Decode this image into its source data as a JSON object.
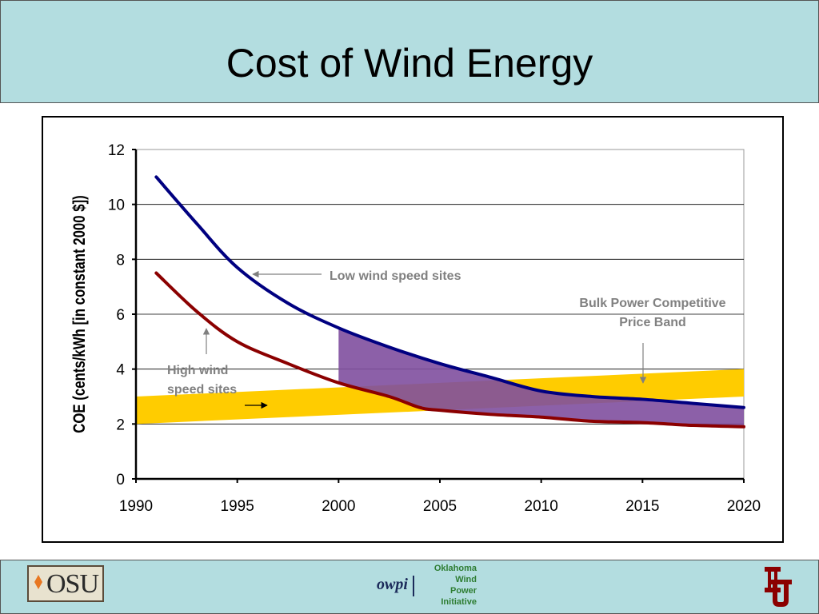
{
  "title": "Cost of Wind Energy",
  "footer": {
    "osu_text": "OSU",
    "owpi_mark": "owpi",
    "owpi_lines": [
      "Oklahoma",
      "Wind",
      "Power",
      "Initiative"
    ]
  },
  "colors": {
    "background_band": "#b3dde0",
    "low_wind_line": "#000080",
    "high_wind_line": "#8b0000",
    "price_band": "#ffcc00",
    "savings_region": "#7f4f9f",
    "grid": "#000000"
  },
  "chart_data": {
    "type": "line",
    "ylabel": "COE (cents/kWh [in constant 2000 $])",
    "xlabel": "",
    "xlim": [
      1990,
      2020
    ],
    "ylim": [
      0,
      12
    ],
    "x_ticks": [
      "1990",
      "1995",
      "2000",
      "2005",
      "2010",
      "2015",
      "2020"
    ],
    "y_ticks": [
      "0",
      "2",
      "4",
      "6",
      "8",
      "10",
      "12"
    ],
    "grid": "horizontal",
    "series": [
      {
        "name": "Low wind speed sites",
        "color": "#000080",
        "x": [
          1991,
          1993,
          1995,
          1997.5,
          2000,
          2002.5,
          2005,
          2007.5,
          2010,
          2012.5,
          2015,
          2017.5,
          2020
        ],
        "values": [
          11.0,
          9.3,
          7.7,
          6.4,
          5.5,
          4.8,
          4.2,
          3.7,
          3.2,
          3.0,
          2.9,
          2.75,
          2.6
        ]
      },
      {
        "name": "High wind speed sites",
        "color": "#8b0000",
        "x": [
          1991,
          1993,
          1995,
          1997.5,
          2000,
          2002.5,
          2004,
          2005,
          2007.5,
          2010,
          2012.5,
          2015,
          2017.5,
          2020
        ],
        "values": [
          7.5,
          6.1,
          5.0,
          4.2,
          3.5,
          3.0,
          2.6,
          2.5,
          2.35,
          2.25,
          2.1,
          2.05,
          1.95,
          1.9
        ]
      }
    ],
    "price_band": {
      "name": "Bulk Power Competitive Price Band",
      "x": [
        1990,
        2020
      ],
      "lower": [
        2.0,
        3.0
      ],
      "upper": [
        3.0,
        4.0
      ]
    },
    "shaded_region_start_x": 2000,
    "annotations": [
      {
        "text": "Low wind speed sites"
      },
      {
        "text": "Bulk Power Competitive Price Band",
        "lines": [
          "Bulk Power Competitive",
          "Price Band"
        ]
      },
      {
        "text": "High wind speed sites",
        "lines": [
          "High wind",
          "speed sites"
        ]
      }
    ]
  }
}
